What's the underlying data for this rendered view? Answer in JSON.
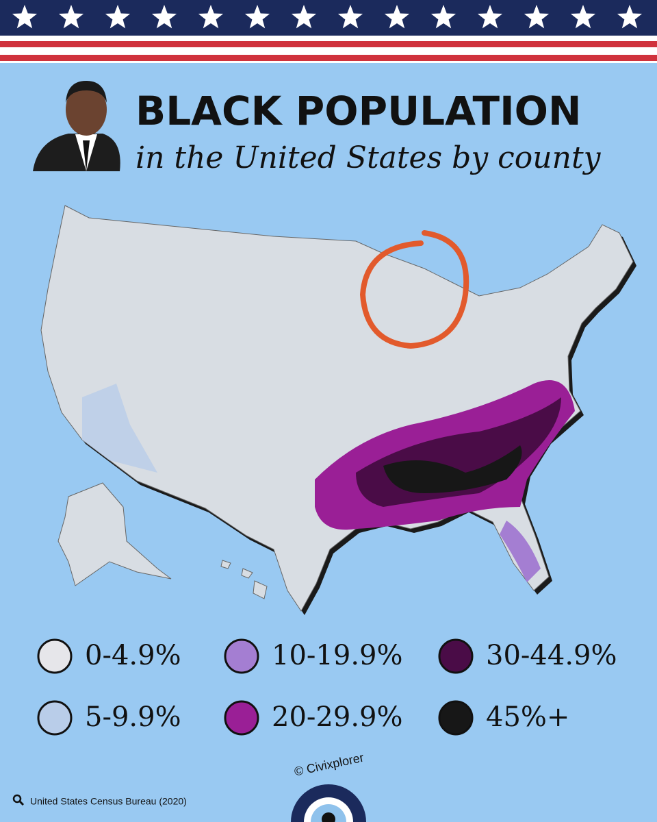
{
  "header": {
    "title": "BLACK POPULATION",
    "subtitle": "in the United States by county"
  },
  "legend": {
    "items": [
      {
        "label": "0-4.9%",
        "color": "#e6e6ea"
      },
      {
        "label": "5-9.9%",
        "color": "#b9cde9"
      },
      {
        "label": "10-19.9%",
        "color": "#a47ed2"
      },
      {
        "label": "20-29.9%",
        "color": "#9a1f96"
      },
      {
        "label": "30-44.9%",
        "color": "#4a0c47"
      },
      {
        "label": "45%+",
        "color": "#171717"
      }
    ]
  },
  "footer": {
    "source": "United States Census Bureau (2020)",
    "credit": "© Civixplorer"
  }
}
